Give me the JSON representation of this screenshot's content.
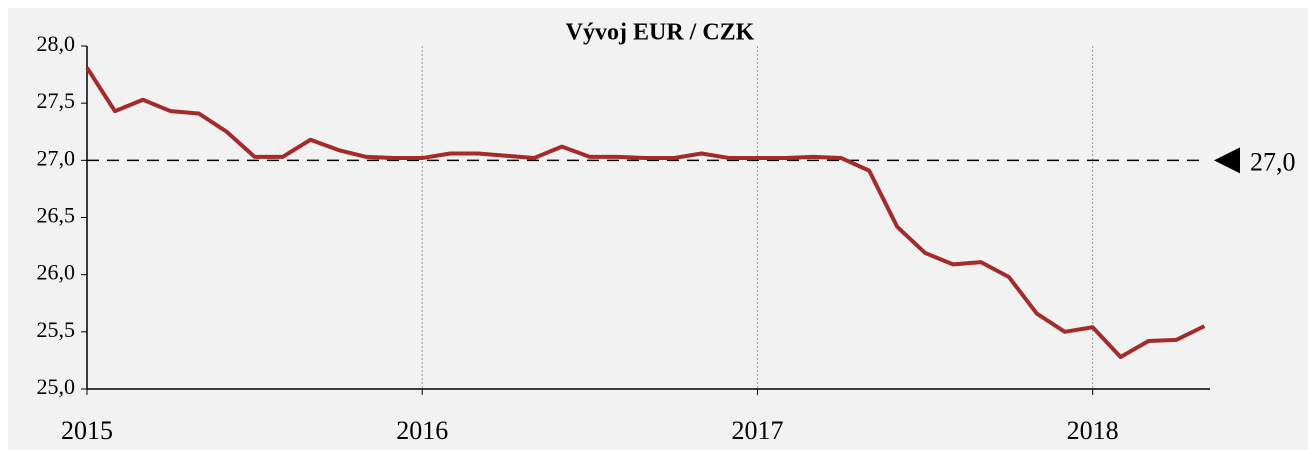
{
  "chart_data": {
    "type": "line",
    "title": "Vývoj EUR / CZK",
    "x": [
      2015,
      2015.0833,
      2015.1667,
      2015.25,
      2015.3333,
      2015.4167,
      2015.5,
      2015.5833,
      2015.6667,
      2015.75,
      2015.8333,
      2015.9167,
      2016,
      2016.0833,
      2016.1667,
      2016.25,
      2016.3333,
      2016.4167,
      2016.5,
      2016.5833,
      2016.6667,
      2016.75,
      2016.8333,
      2016.9167,
      2017,
      2017.0833,
      2017.1667,
      2017.25,
      2017.3333,
      2017.4167,
      2017.5,
      2017.5833,
      2017.6667,
      2017.75,
      2017.8333,
      2017.9167,
      2018,
      2018.0833,
      2018.1667,
      2018.25,
      2018.3333
    ],
    "series": [
      {
        "name": "EUR / CZK",
        "color": "#a52a2a",
        "values": [
          27.81,
          27.43,
          27.53,
          27.43,
          27.41,
          27.25,
          27.03,
          27.03,
          27.18,
          27.09,
          27.03,
          27.02,
          27.02,
          27.06,
          27.06,
          27.04,
          27.02,
          27.12,
          27.03,
          27.03,
          27.02,
          27.02,
          27.06,
          27.02,
          27.02,
          27.02,
          27.03,
          27.02,
          26.91,
          26.42,
          26.19,
          26.09,
          26.11,
          25.98,
          25.66,
          25.5,
          25.54,
          25.28,
          25.42,
          25.43,
          25.55
        ]
      }
    ],
    "xlim": [
      2015,
      2018.35
    ],
    "xticks": [
      2015,
      2016,
      2017,
      2018
    ],
    "ylim": [
      25,
      28
    ],
    "yticks": [
      {
        "value": 25,
        "label": "25,0"
      },
      {
        "value": 25.5,
        "label": "25,5"
      },
      {
        "value": 26,
        "label": "26,0"
      },
      {
        "value": 26.5,
        "label": "26,5"
      },
      {
        "value": 27,
        "label": "27,0"
      },
      {
        "value": 27.5,
        "label": "27,5"
      },
      {
        "value": 28,
        "label": "28,0"
      }
    ],
    "reference_line": {
      "value": 27,
      "label": "27,0"
    },
    "grid": "x"
  }
}
